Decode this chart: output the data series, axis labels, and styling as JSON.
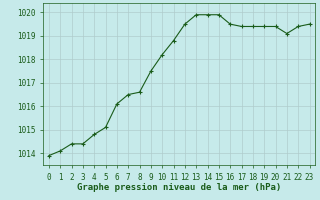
{
  "x": [
    0,
    1,
    2,
    3,
    4,
    5,
    6,
    7,
    8,
    9,
    10,
    11,
    12,
    13,
    14,
    15,
    16,
    17,
    18,
    19,
    20,
    21,
    22,
    23
  ],
  "y": [
    1013.9,
    1014.1,
    1014.4,
    1014.4,
    1014.8,
    1015.1,
    1016.1,
    1016.5,
    1016.6,
    1017.5,
    1018.2,
    1018.8,
    1019.5,
    1019.9,
    1019.9,
    1019.9,
    1019.5,
    1019.4,
    1019.4,
    1019.4,
    1019.4,
    1019.1,
    1019.4,
    1019.5
  ],
  "line_color": "#1a5c1a",
  "marker": "+",
  "marker_size": 3,
  "marker_linewidth": 0.8,
  "line_width": 0.8,
  "bg_color": "#c6eaea",
  "grid_color": "#b0cccc",
  "axis_color": "#1a5c1a",
  "tick_label_color": "#1a5c1a",
  "xlabel": "Graphe pression niveau de la mer (hPa)",
  "xlabel_color": "#1a5c1a",
  "xlabel_fontsize": 6.5,
  "tick_fontsize": 5.5,
  "ylim": [
    1013.5,
    1020.4
  ],
  "yticks": [
    1014,
    1015,
    1016,
    1017,
    1018,
    1019,
    1020
  ],
  "xlim": [
    -0.5,
    23.5
  ],
  "xticks": [
    0,
    1,
    2,
    3,
    4,
    5,
    6,
    7,
    8,
    9,
    10,
    11,
    12,
    13,
    14,
    15,
    16,
    17,
    18,
    19,
    20,
    21,
    22,
    23
  ]
}
